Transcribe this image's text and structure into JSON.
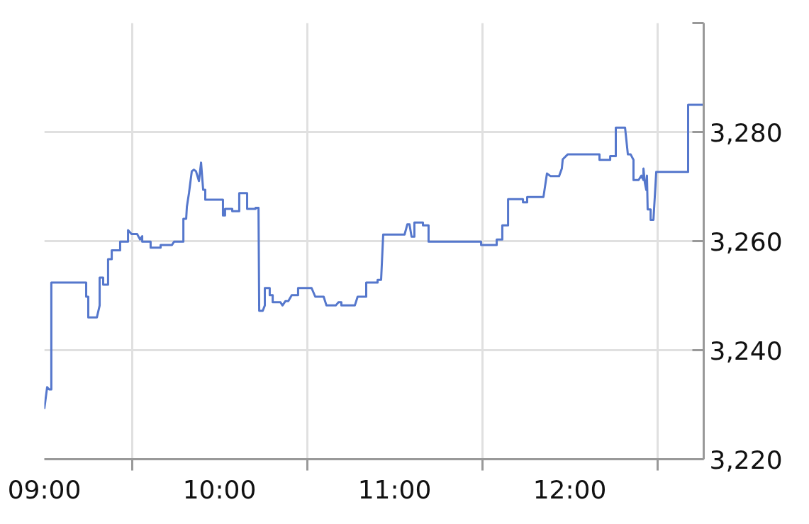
{
  "chart_data": {
    "type": "line",
    "x": [
      9.0,
      9.016,
      9.028,
      9.04,
      9.04,
      9.239,
      9.239,
      9.251,
      9.251,
      9.3,
      9.316,
      9.316,
      9.336,
      9.336,
      9.364,
      9.364,
      9.385,
      9.385,
      9.433,
      9.433,
      9.478,
      9.478,
      9.498,
      9.53,
      9.547,
      9.559,
      9.559,
      9.607,
      9.607,
      9.664,
      9.664,
      9.729,
      9.741,
      9.794,
      9.794,
      9.81,
      9.814,
      9.826,
      9.842,
      9.854,
      9.866,
      9.883,
      9.895,
      9.907,
      9.919,
      9.919,
      10.02,
      10.02,
      10.032,
      10.032,
      10.073,
      10.073,
      10.113,
      10.113,
      10.158,
      10.158,
      10.206,
      10.206,
      10.223,
      10.227,
      10.247,
      10.259,
      10.259,
      10.287,
      10.287,
      10.304,
      10.304,
      10.348,
      10.36,
      10.377,
      10.393,
      10.413,
      10.449,
      10.449,
      10.526,
      10.547,
      10.595,
      10.611,
      10.664,
      10.68,
      10.696,
      10.696,
      10.773,
      10.789,
      10.838,
      10.838,
      10.903,
      10.903,
      10.923,
      10.935,
      11.057,
      11.073,
      11.085,
      11.097,
      11.113,
      11.113,
      11.162,
      11.162,
      11.194,
      11.194,
      11.494,
      11.494,
      11.583,
      11.583,
      11.615,
      11.615,
      11.648,
      11.648,
      11.733,
      11.733,
      11.757,
      11.757,
      11.85,
      11.87,
      11.891,
      11.939,
      11.955,
      11.96,
      11.988,
      12.17,
      12.17,
      12.231,
      12.231,
      12.263,
      12.263,
      12.316,
      12.332,
      12.348,
      12.364,
      12.364,
      12.393,
      12.409,
      12.421,
      12.421,
      12.429,
      12.437,
      12.441,
      12.445,
      12.462,
      12.462,
      12.478,
      12.494,
      12.676,
      12.676,
      12.765
    ],
    "series": [
      {
        "color": "#5577cc",
        "values": [
          3229.2,
          3233.2,
          3232.8,
          3232.8,
          3252.4,
          3252.4,
          3249.8,
          3249.8,
          3246.0,
          3246.0,
          3248.2,
          3253.3,
          3253.3,
          3252.0,
          3252.0,
          3256.7,
          3256.7,
          3258.3,
          3258.3,
          3259.9,
          3259.9,
          3262.0,
          3261.3,
          3261.3,
          3260.3,
          3260.9,
          3259.9,
          3259.9,
          3258.8,
          3258.8,
          3259.3,
          3259.3,
          3259.9,
          3259.9,
          3264.1,
          3264.1,
          3266.3,
          3268.8,
          3272.8,
          3273.1,
          3272.8,
          3271.0,
          3274.4,
          3269.4,
          3269.4,
          3267.6,
          3267.6,
          3264.7,
          3264.7,
          3265.9,
          3265.9,
          3265.5,
          3265.5,
          3268.8,
          3268.8,
          3265.9,
          3265.9,
          3266.1,
          3266.1,
          3247.2,
          3247.2,
          3248.2,
          3251.4,
          3251.4,
          3250.1,
          3250.1,
          3248.8,
          3248.8,
          3248.2,
          3249.0,
          3249.0,
          3250.1,
          3250.1,
          3251.4,
          3251.4,
          3249.8,
          3249.8,
          3248.2,
          3248.2,
          3248.8,
          3248.8,
          3248.2,
          3248.2,
          3249.8,
          3249.8,
          3252.4,
          3252.4,
          3252.9,
          3252.9,
          3261.2,
          3261.2,
          3263.1,
          3263.1,
          3260.8,
          3260.8,
          3263.4,
          3263.4,
          3262.9,
          3262.9,
          3259.9,
          3259.9,
          3259.3,
          3259.3,
          3260.3,
          3260.3,
          3262.9,
          3262.9,
          3267.7,
          3267.7,
          3267.1,
          3267.1,
          3268.1,
          3268.1,
          3272.4,
          3271.9,
          3271.9,
          3273.3,
          3275.0,
          3275.9,
          3275.9,
          3274.9,
          3274.9,
          3275.6,
          3275.6,
          3280.8,
          3280.8,
          3275.9,
          3275.9,
          3274.9,
          3271.2,
          3271.2,
          3272.0,
          3271.2,
          3273.3,
          3270.7,
          3269.4,
          3272.0,
          3265.8,
          3265.8,
          3263.9,
          3263.9,
          3272.7,
          3272.7,
          3285.0,
          3285.0
        ]
      }
    ],
    "xlim": [
      9,
      12.765
    ],
    "ylim": [
      3220,
      3300
    ],
    "xticks": [
      {
        "value": 9,
        "label": "09:00"
      },
      {
        "value": 9.5,
        "label": null
      },
      {
        "value": 10,
        "label": "10:00"
      },
      {
        "value": 10.5,
        "label": null
      },
      {
        "value": 11,
        "label": "11:00"
      },
      {
        "value": 11.5,
        "label": null
      },
      {
        "value": 12,
        "label": "12:00"
      },
      {
        "value": 12.5,
        "label": null
      }
    ],
    "yticks": [
      {
        "value": 3220,
        "label": "3,220"
      },
      {
        "value": 3240,
        "label": "3,240"
      },
      {
        "value": 3260,
        "label": "3,260"
      },
      {
        "value": 3280,
        "label": "3,280"
      },
      {
        "value": 3300,
        "label": null
      }
    ],
    "grid": true
  }
}
